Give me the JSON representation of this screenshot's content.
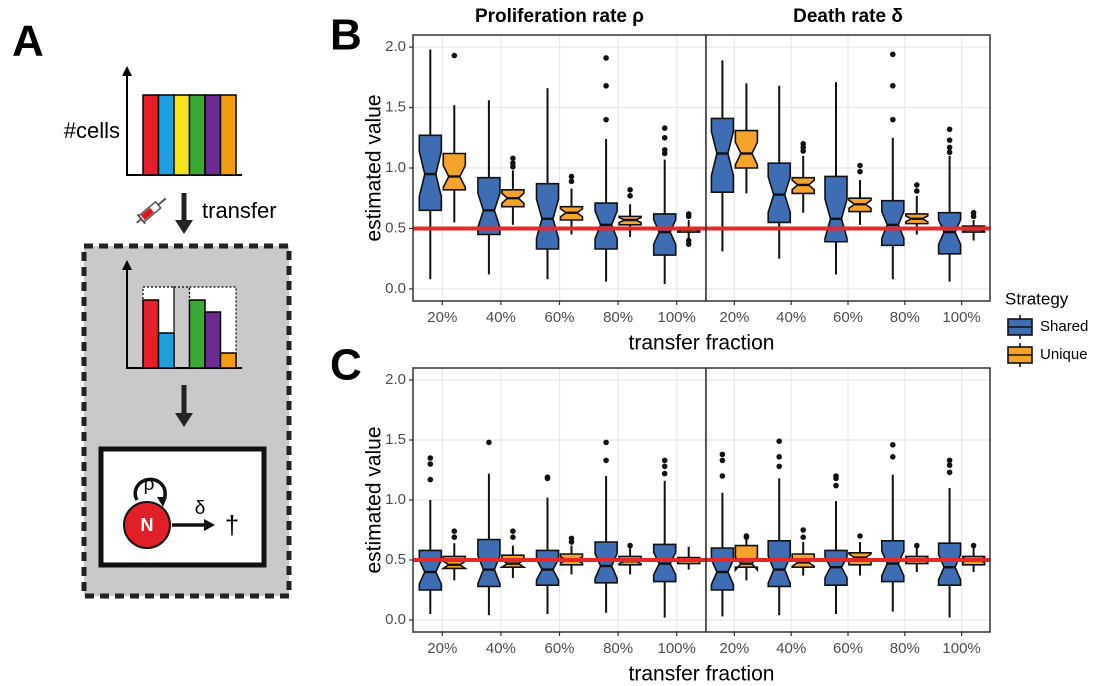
{
  "diagram": {
    "label": "A",
    "y_label": "#cells",
    "transfer": "transfer",
    "rho": "ρ",
    "node": "N",
    "delta": "δ",
    "death": "†"
  },
  "chart_data": [
    {
      "type": "box",
      "label": "B",
      "x_label": "transfer fraction",
      "y_label": "estimated value",
      "categories": [
        "20%",
        "40%",
        "60%",
        "80%",
        "100%"
      ],
      "ylim": [
        -0.1,
        2.1
      ],
      "yticks": [
        {
          "value": 0,
          "label": "0.0"
        },
        0.5,
        {
          "value": 1,
          "label": "1.0"
        },
        1.5,
        {
          "value": 2,
          "label": "2.0"
        }
      ],
      "grid": true,
      "hline": {
        "value": 0.5,
        "color": "#e5282a"
      },
      "legend": {
        "title": "Strategy",
        "position": "right"
      },
      "series": [
        {
          "name": "Shared",
          "color": "#3e6db3"
        },
        {
          "name": "Unique",
          "color": "#f4a42a"
        }
      ],
      "facets": [
        {
          "title": "Proliferation rate ρ",
          "boxes": [
            [
              {
                "low": 0.08,
                "q1": 0.65,
                "median": 0.95,
                "q3": 1.27,
                "high": 1.98,
                "outliers": []
              },
              {
                "low": 0.12,
                "q1": 0.45,
                "median": 0.65,
                "q3": 0.92,
                "high": 1.56,
                "outliers": []
              },
              {
                "low": 0.08,
                "q1": 0.33,
                "median": 0.58,
                "q3": 0.87,
                "high": 1.66,
                "outliers": []
              },
              {
                "low": 0.06,
                "q1": 0.33,
                "median": 0.53,
                "q3": 0.71,
                "high": 1.24,
                "outliers": [
                  1.4,
                  1.68,
                  1.91
                ]
              },
              {
                "low": 0.04,
                "q1": 0.28,
                "median": 0.47,
                "q3": 0.62,
                "high": 1.07,
                "outliers": [
                  1.12,
                  1.15,
                  1.25,
                  1.33
                ]
              }
            ],
            [
              {
                "low": 0.55,
                "q1": 0.82,
                "median": 0.93,
                "q3": 1.12,
                "high": 1.52,
                "outliers": [
                  1.93
                ]
              },
              {
                "low": 0.53,
                "q1": 0.68,
                "median": 0.75,
                "q3": 0.82,
                "high": 0.98,
                "outliers": [
                  1.01,
                  1.04,
                  1.08
                ]
              },
              {
                "low": 0.45,
                "q1": 0.57,
                "median": 0.63,
                "q3": 0.68,
                "high": 0.83,
                "outliers": [
                  0.89,
                  0.93
                ]
              },
              {
                "low": 0.43,
                "q1": 0.53,
                "median": 0.57,
                "q3": 0.6,
                "high": 0.7,
                "outliers": [
                  0.77,
                  0.82
                ]
              },
              {
                "low": 0.42,
                "q1": 0.47,
                "median": 0.49,
                "q3": 0.51,
                "high": 0.57,
                "outliers": [
                  0.37,
                  0.4,
                  0.6,
                  0.62
                ]
              }
            ]
          ]
        },
        {
          "title": "Death rate δ",
          "boxes": [
            [
              {
                "low": 0.31,
                "q1": 0.8,
                "median": 1.12,
                "q3": 1.41,
                "high": 1.89,
                "outliers": []
              },
              {
                "low": 0.25,
                "q1": 0.55,
                "median": 0.78,
                "q3": 1.04,
                "high": 1.68,
                "outliers": []
              },
              {
                "low": 0.12,
                "q1": 0.39,
                "median": 0.58,
                "q3": 0.93,
                "high": 1.71,
                "outliers": []
              },
              {
                "low": 0.08,
                "q1": 0.36,
                "median": 0.53,
                "q3": 0.73,
                "high": 1.25,
                "outliers": [
                  1.4,
                  1.68,
                  1.94
                ]
              },
              {
                "low": 0.06,
                "q1": 0.29,
                "median": 0.47,
                "q3": 0.63,
                "high": 1.1,
                "outliers": [
                  1.13,
                  1.17,
                  1.23,
                  1.32
                ]
              }
            ],
            [
              {
                "low": 0.79,
                "q1": 1.0,
                "median": 1.12,
                "q3": 1.31,
                "high": 1.7,
                "outliers": []
              },
              {
                "low": 0.63,
                "q1": 0.79,
                "median": 0.86,
                "q3": 0.92,
                "high": 1.1,
                "outliers": [
                  1.14,
                  1.17,
                  1.2
                ]
              },
              {
                "low": 0.53,
                "q1": 0.64,
                "median": 0.7,
                "q3": 0.75,
                "high": 0.9,
                "outliers": [
                  0.97,
                  1.02
                ]
              },
              {
                "low": 0.45,
                "q1": 0.54,
                "median": 0.58,
                "q3": 0.62,
                "high": 0.77,
                "outliers": [
                  0.81,
                  0.86
                ]
              },
              {
                "low": 0.4,
                "q1": 0.47,
                "median": 0.49,
                "q3": 0.52,
                "high": 0.57,
                "outliers": [
                  0.6,
                  0.63
                ]
              }
            ]
          ]
        }
      ]
    },
    {
      "type": "box",
      "label": "C",
      "x_label": "transfer fraction",
      "y_label": "estimated value",
      "categories": [
        "20%",
        "40%",
        "60%",
        "80%",
        "100%"
      ],
      "ylim": [
        -0.1,
        2.1
      ],
      "yticks": [
        {
          "value": 0,
          "label": "0.0"
        },
        0.5,
        {
          "value": 1,
          "label": "1.0"
        },
        1.5,
        {
          "value": 2,
          "label": "2.0"
        }
      ],
      "grid": true,
      "hline": {
        "value": 0.5,
        "color": "#e5282a"
      },
      "facets": [
        {
          "boxes": [
            [
              {
                "low": 0.05,
                "q1": 0.25,
                "median": 0.4,
                "q3": 0.58,
                "high": 1.0,
                "outliers": [
                  1.17,
                  1.3,
                  1.35
                ]
              },
              {
                "low": 0.04,
                "q1": 0.28,
                "median": 0.42,
                "q3": 0.67,
                "high": 1.22,
                "outliers": [
                  1.48
                ]
              },
              {
                "low": 0.05,
                "q1": 0.29,
                "median": 0.42,
                "q3": 0.58,
                "high": 1.02,
                "outliers": [
                  1.18,
                  1.19
                ]
              },
              {
                "low": 0.06,
                "q1": 0.31,
                "median": 0.45,
                "q3": 0.65,
                "high": 1.2,
                "outliers": [
                  1.33,
                  1.48
                ]
              },
              {
                "low": 0.02,
                "q1": 0.32,
                "median": 0.47,
                "q3": 0.63,
                "high": 1.16,
                "outliers": [
                  1.22,
                  1.28,
                  1.33
                ]
              }
            ],
            [
              {
                "low": 0.33,
                "q1": 0.43,
                "median": 0.46,
                "q3": 0.53,
                "high": 0.64,
                "outliers": [
                  0.69,
                  0.74
                ]
              },
              {
                "low": 0.35,
                "q1": 0.44,
                "median": 0.47,
                "q3": 0.54,
                "high": 0.62,
                "outliers": [
                  0.69,
                  0.74
                ]
              },
              {
                "low": 0.38,
                "q1": 0.46,
                "median": 0.5,
                "q3": 0.55,
                "high": 0.62,
                "outliers": [
                  0.65,
                  0.68
                ]
              },
              {
                "low": 0.38,
                "q1": 0.46,
                "median": 0.49,
                "q3": 0.53,
                "high": 0.6,
                "outliers": [
                  0.62
                ]
              },
              {
                "low": 0.42,
                "q1": 0.47,
                "median": 0.5,
                "q3": 0.52,
                "high": 0.61,
                "outliers": []
              }
            ]
          ]
        },
        {
          "boxes": [
            [
              {
                "low": 0.03,
                "q1": 0.25,
                "median": 0.4,
                "q3": 0.6,
                "high": 1.06,
                "outliers": [
                  1.2,
                  1.33,
                  1.38
                ]
              },
              {
                "low": 0.04,
                "q1": 0.28,
                "median": 0.42,
                "q3": 0.66,
                "high": 1.18,
                "outliers": [
                  1.28,
                  1.36,
                  1.49
                ]
              },
              {
                "low": 0.05,
                "q1": 0.29,
                "median": 0.44,
                "q3": 0.58,
                "high": 0.99,
                "outliers": [
                  1.12,
                  1.18,
                  1.2
                ]
              },
              {
                "low": 0.07,
                "q1": 0.32,
                "median": 0.47,
                "q3": 0.66,
                "high": 1.21,
                "outliers": [
                  1.36,
                  1.46
                ]
              },
              {
                "low": 0.02,
                "q1": 0.29,
                "median": 0.44,
                "q3": 0.64,
                "high": 1.1,
                "outliers": [
                  1.23,
                  1.29,
                  1.33
                ]
              }
            ],
            [
              {
                "low": 0.33,
                "q1": 0.44,
                "median": 0.47,
                "q3": 0.62,
                "high": 0.67,
                "outliers": [
                  0.69,
                  0.7
                ]
              },
              {
                "low": 0.37,
                "q1": 0.44,
                "median": 0.48,
                "q3": 0.55,
                "high": 0.65,
                "outliers": [
                  0.69,
                  0.75
                ]
              },
              {
                "low": 0.37,
                "q1": 0.46,
                "median": 0.52,
                "q3": 0.56,
                "high": 0.65,
                "outliers": [
                  0.7
                ]
              },
              {
                "low": 0.4,
                "q1": 0.47,
                "median": 0.5,
                "q3": 0.53,
                "high": 0.61,
                "outliers": [
                  0.62
                ]
              },
              {
                "low": 0.4,
                "q1": 0.46,
                "median": 0.5,
                "q3": 0.53,
                "high": 0.61,
                "outliers": [
                  0.62
                ]
              }
            ]
          ]
        }
      ]
    }
  ]
}
